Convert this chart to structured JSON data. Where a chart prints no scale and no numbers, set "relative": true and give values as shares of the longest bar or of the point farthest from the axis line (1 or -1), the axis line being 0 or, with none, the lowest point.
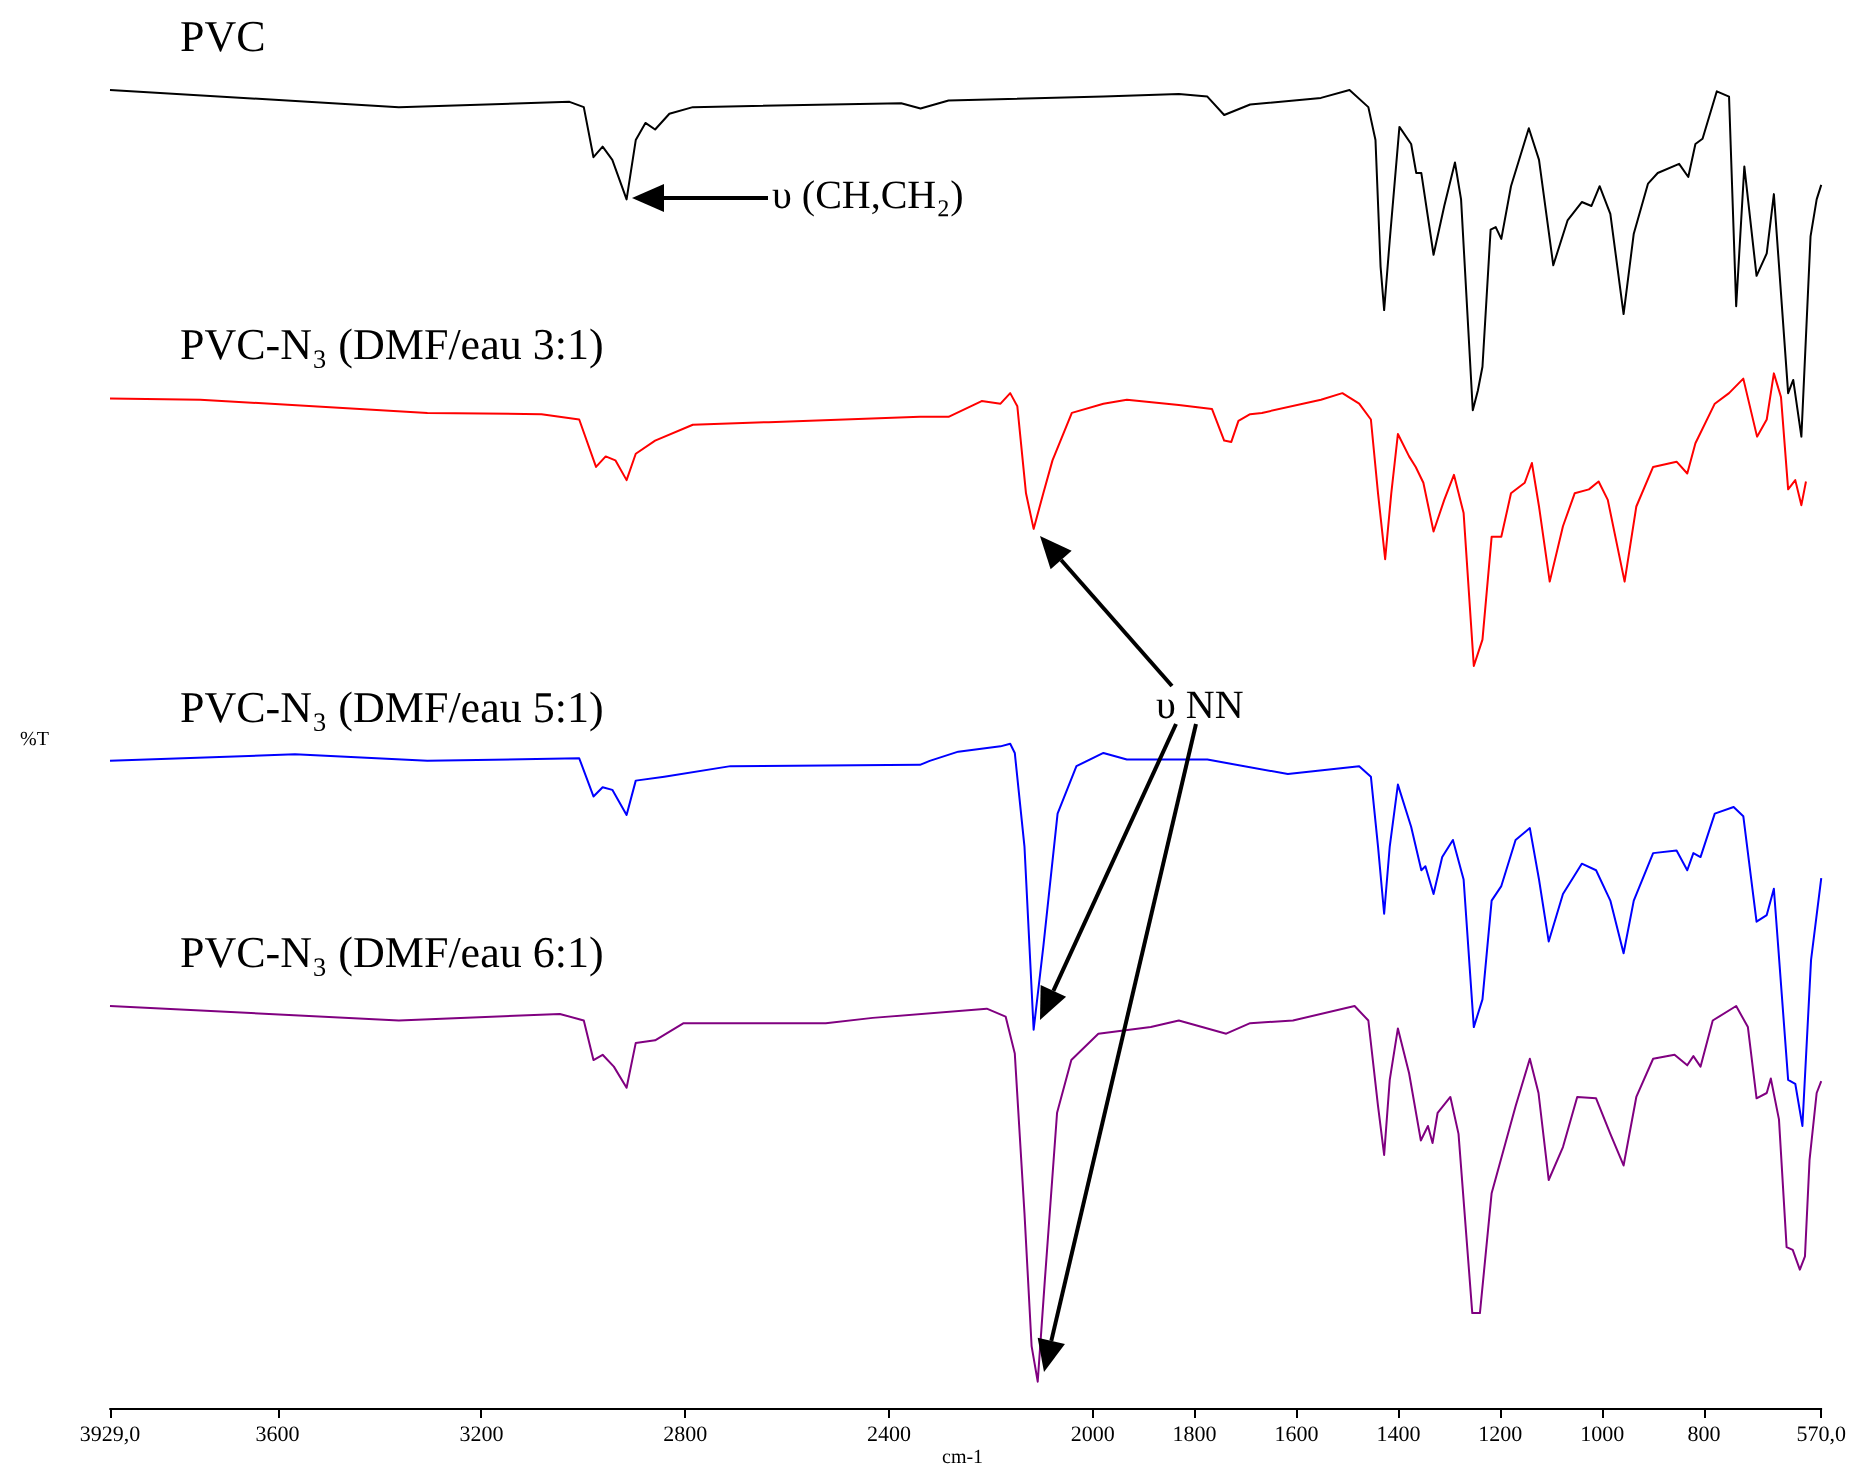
{
  "chart_data": {
    "type": "line",
    "relative": true,
    "marker": "none",
    "xlabel": "cm-1",
    "ylabel": "%T",
    "xlim": [
      3929,
      570
    ],
    "xticks": [
      {
        "value": 3929,
        "label": "3929,0"
      },
      3600,
      3200,
      2800,
      2400,
      2000,
      1800,
      1600,
      1400,
      1200,
      1000,
      800,
      {
        "value": 570,
        "label": "570,0"
      }
    ],
    "annotations": [
      "υ (CH,CH₂)",
      "υ NN"
    ],
    "series": [
      {
        "name": "PVC",
        "color": "#000000",
        "x": [
          3929,
          3362,
          3027,
          2999,
          2980,
          2962,
          2943,
          2915,
          2897,
          2878,
          2859,
          2831,
          2785,
          2376,
          2338,
          2283,
          1979,
          1831,
          1775,
          1742,
          1691,
          1552,
          1496,
          1459,
          1445,
          1435,
          1428,
          1417,
          1398,
          1375,
          1365,
          1355,
          1331,
          1310,
          1289,
          1277,
          1254,
          1244,
          1235,
          1219,
          1209,
          1198,
          1179,
          1144,
          1124,
          1096,
          1068,
          1040,
          1021,
          1005,
          984,
          958,
          938,
          910,
          891,
          849,
          831,
          817,
          803,
          775,
          751,
          737,
          721,
          697,
          677,
          663,
          635,
          625,
          609,
          591,
          579,
          570
        ],
        "values": [
          1.0,
          0.987,
          0.991,
          0.987,
          0.949,
          0.957,
          0.947,
          0.917,
          0.962,
          0.975,
          0.97,
          0.982,
          0.987,
          0.99,
          0.986,
          0.992,
          0.995,
          0.997,
          0.995,
          0.981,
          0.989,
          0.994,
          1.0,
          0.987,
          0.962,
          0.866,
          0.833,
          0.886,
          0.972,
          0.959,
          0.937,
          0.937,
          0.875,
          0.912,
          0.945,
          0.917,
          0.757,
          0.772,
          0.79,
          0.894,
          0.896,
          0.887,
          0.927,
          0.971,
          0.947,
          0.867,
          0.901,
          0.915,
          0.912,
          0.927,
          0.906,
          0.83,
          0.891,
          0.929,
          0.937,
          0.944,
          0.934,
          0.959,
          0.963,
          0.999,
          0.995,
          0.836,
          0.942,
          0.859,
          0.876,
          0.921,
          0.77,
          0.78,
          0.737,
          0.889,
          0.917,
          0.928
        ]
      },
      {
        "name": "PVC-N₃ (DMF/eau 3:1)",
        "color": "#ff0000",
        "x": [
          3929,
          3752,
          3306,
          3082,
          3008,
          2975,
          2956,
          2937,
          2915,
          2897,
          2859,
          2785,
          2636,
          2339,
          2283,
          2218,
          2181,
          2162,
          2148,
          2131,
          2116,
          2097,
          2079,
          2041,
          1979,
          1933,
          1831,
          1766,
          1742,
          1728,
          1714,
          1691,
          1668,
          1552,
          1510,
          1477,
          1454,
          1440,
          1426,
          1414,
          1401,
          1379,
          1366,
          1351,
          1331,
          1310,
          1291,
          1272,
          1252,
          1235,
          1217,
          1198,
          1179,
          1152,
          1138,
          1124,
          1103,
          1077,
          1054,
          1026,
          1007,
          989,
          956,
          933,
          900,
          854,
          833,
          817,
          779,
          751,
          723,
          696,
          677,
          663,
          649,
          635,
          621,
          609,
          600
        ],
        "values": [
          0.766,
          0.765,
          0.755,
          0.754,
          0.75,
          0.714,
          0.722,
          0.719,
          0.704,
          0.724,
          0.734,
          0.746,
          0.748,
          0.752,
          0.752,
          0.764,
          0.762,
          0.77,
          0.76,
          0.694,
          0.667,
          0.694,
          0.719,
          0.755,
          0.762,
          0.765,
          0.761,
          0.758,
          0.734,
          0.733,
          0.749,
          0.754,
          0.755,
          0.765,
          0.77,
          0.762,
          0.75,
          0.694,
          0.644,
          0.694,
          0.739,
          0.722,
          0.714,
          0.702,
          0.665,
          0.689,
          0.708,
          0.679,
          0.563,
          0.583,
          0.661,
          0.661,
          0.694,
          0.702,
          0.717,
          0.684,
          0.627,
          0.669,
          0.694,
          0.697,
          0.703,
          0.689,
          0.627,
          0.684,
          0.714,
          0.718,
          0.709,
          0.732,
          0.762,
          0.77,
          0.781,
          0.737,
          0.75,
          0.785,
          0.767,
          0.697,
          0.704,
          0.685,
          0.703
        ]
      },
      {
        "name": "PVC-N₃ (DMF/eau 5:1)",
        "color": "#0000ff",
        "x": [
          3929,
          3566,
          3306,
          3008,
          2980,
          2962,
          2943,
          2915,
          2897,
          2841,
          2711,
          2339,
          2320,
          2264,
          2181,
          2162,
          2153,
          2134,
          2116,
          2097,
          2069,
          2032,
          1979,
          1933,
          1775,
          1617,
          1477,
          1454,
          1440,
          1428,
          1417,
          1401,
          1375,
          1355,
          1347,
          1331,
          1314,
          1293,
          1272,
          1252,
          1235,
          1217,
          1198,
          1170,
          1142,
          1124,
          1105,
          1077,
          1040,
          1012,
          984,
          958,
          938,
          900,
          854,
          833,
          821,
          807,
          779,
          742,
          723,
          697,
          677,
          663,
          635,
          621,
          607,
          590,
          570
        ],
        "values": [
          0.491,
          0.496,
          0.491,
          0.493,
          0.464,
          0.471,
          0.469,
          0.45,
          0.476,
          0.479,
          0.487,
          0.488,
          0.491,
          0.498,
          0.502,
          0.504,
          0.497,
          0.426,
          0.287,
          0.35,
          0.451,
          0.487,
          0.497,
          0.492,
          0.492,
          0.481,
          0.487,
          0.479,
          0.426,
          0.375,
          0.426,
          0.473,
          0.441,
          0.408,
          0.411,
          0.39,
          0.418,
          0.431,
          0.401,
          0.289,
          0.31,
          0.385,
          0.396,
          0.431,
          0.44,
          0.401,
          0.354,
          0.39,
          0.413,
          0.408,
          0.385,
          0.345,
          0.385,
          0.421,
          0.423,
          0.408,
          0.421,
          0.418,
          0.451,
          0.456,
          0.449,
          0.369,
          0.374,
          0.394,
          0.249,
          0.246,
          0.214,
          0.34,
          0.402
        ]
      },
      {
        "name": "PVC-N₃ (DMF/eau 6:1)",
        "color": "#800080",
        "x": [
          3929,
          3362,
          3046,
          2999,
          2980,
          2962,
          2940,
          2915,
          2897,
          2859,
          2803,
          2524,
          2432,
          2208,
          2171,
          2153,
          2134,
          2120,
          2108,
          2094,
          2070,
          2042,
          1989,
          1886,
          1831,
          1738,
          1691,
          1607,
          1486,
          1459,
          1440,
          1428,
          1417,
          1401,
          1379,
          1356,
          1342,
          1333,
          1323,
          1298,
          1282,
          1255,
          1240,
          1217,
          1170,
          1142,
          1125,
          1105,
          1077,
          1049,
          1012,
          984,
          958,
          933,
          900,
          858,
          833,
          821,
          807,
          783,
          737,
          714,
          697,
          677,
          669,
          653,
          638,
          626,
          612,
          602,
          593,
          579,
          570
        ],
        "values": [
          0.305,
          0.294,
          0.299,
          0.294,
          0.264,
          0.268,
          0.259,
          0.243,
          0.277,
          0.279,
          0.292,
          0.292,
          0.296,
          0.303,
          0.297,
          0.269,
          0.148,
          0.047,
          0.02,
          0.097,
          0.224,
          0.264,
          0.284,
          0.289,
          0.294,
          0.284,
          0.292,
          0.294,
          0.305,
          0.294,
          0.229,
          0.192,
          0.249,
          0.288,
          0.254,
          0.203,
          0.214,
          0.201,
          0.224,
          0.236,
          0.208,
          0.072,
          0.072,
          0.163,
          0.229,
          0.265,
          0.239,
          0.173,
          0.198,
          0.236,
          0.235,
          0.208,
          0.184,
          0.236,
          0.265,
          0.268,
          0.26,
          0.267,
          0.259,
          0.294,
          0.305,
          0.289,
          0.235,
          0.239,
          0.25,
          0.219,
          0.122,
          0.12,
          0.105,
          0.115,
          0.188,
          0.239,
          0.248
        ]
      }
    ]
  }
}
